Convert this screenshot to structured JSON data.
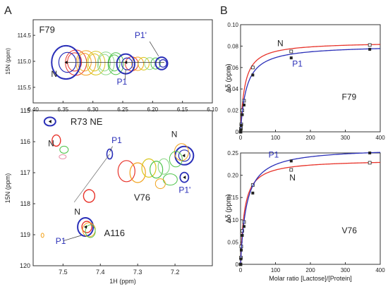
{
  "panel_labels": {
    "a": "A",
    "b": "B"
  },
  "colors": {
    "blue": "#2a2fb8",
    "red": "#e8342b",
    "orange": "#f2a21a",
    "yellow": "#d8c61c",
    "green": "#4fc44a",
    "lightgreen": "#8fd88a",
    "pink": "#e88fa6",
    "axis": "#333333",
    "gray": "#777777"
  },
  "chart_data": [
    {
      "type": "scatter",
      "subtype": "nmr-spectrum-zoom",
      "residue": "F79",
      "xlabel": "",
      "ylabel": "15N (ppm)",
      "xlim": [
        6.4,
        6.1
      ],
      "ylim": [
        114.2,
        115.8
      ],
      "xticks": [
        "6.40",
        "6.35",
        "6.30",
        "6.25",
        "6.20",
        "6.15",
        "6.10"
      ],
      "yticks": [
        "114.5",
        "115.0",
        "115.5"
      ],
      "annotations": [
        {
          "text": "F79",
          "x": 6.39,
          "y": 114.45,
          "color": "#222222"
        },
        {
          "text": "N",
          "x": 6.37,
          "y": 115.3,
          "color": "#222222"
        },
        {
          "text": "P1'",
          "x": 6.23,
          "y": 114.55,
          "color": "#2a2fb8"
        },
        {
          "text": "P1",
          "x": 6.26,
          "y": 115.45,
          "color": "#2a2fb8"
        }
      ],
      "peaks": {
        "N": [
          6.345,
          115.02
        ],
        "P1": [
          6.245,
          115.05
        ],
        "P1'": [
          6.185,
          115.04
        ]
      },
      "series": [
        {
          "name": "N",
          "color": "#2a2fb8",
          "center": [
            6.345,
            115.02
          ],
          "rx": 0.024,
          "ry": 0.32
        },
        {
          "name": "P1",
          "color": "#2a2fb8",
          "center": [
            6.245,
            115.05
          ],
          "rx": 0.015,
          "ry": 0.19
        },
        {
          "name": "P1'",
          "color": "#2a2fb8",
          "center": [
            6.185,
            115.04
          ],
          "rx": 0.01,
          "ry": 0.12
        }
      ]
    },
    {
      "type": "scatter",
      "subtype": "nmr-spectrum-zoom",
      "residues": [
        "R73 NE",
        "V76",
        "A116"
      ],
      "xlabel": "1H (ppm)",
      "ylabel": "15N (ppm)",
      "xlim": [
        7.58,
        7.1
      ],
      "ylim": [
        115,
        120
      ],
      "xticks": [
        "7.5",
        "7.4",
        "7.3",
        "7.2"
      ],
      "yticks": [
        "115",
        "116",
        "117",
        "118",
        "119",
        "120"
      ],
      "annotations": [
        {
          "text": "R73 NE",
          "x": 7.48,
          "y": 115.45,
          "color": "#222222"
        },
        {
          "text": "N",
          "x": 7.54,
          "y": 116.15,
          "color": "#222222"
        },
        {
          "text": "P1",
          "x": 7.37,
          "y": 116.05,
          "color": "#2a2fb8"
        },
        {
          "text": "N",
          "x": 7.21,
          "y": 115.85,
          "color": "#222222"
        },
        {
          "text": "V76",
          "x": 7.31,
          "y": 117.9,
          "color": "#222222"
        },
        {
          "text": "P1'",
          "x": 7.19,
          "y": 117.65,
          "color": "#2a2fb8"
        },
        {
          "text": "N",
          "x": 7.47,
          "y": 118.35,
          "color": "#222222"
        },
        {
          "text": "A116",
          "x": 7.39,
          "y": 119.05,
          "color": "#222222"
        },
        {
          "text": "P1",
          "x": 7.52,
          "y": 119.3,
          "color": "#2a2fb8"
        }
      ],
      "peaks": {
        "R73_N": [
          7.535,
          115.35
        ],
        "V76_N": [
          7.175,
          116.45
        ],
        "V76_P1": [
          7.375,
          116.4
        ],
        "V76_P1p": [
          7.175,
          117.15
        ],
        "A116_N": [
          7.44,
          118.75
        ]
      }
    },
    {
      "type": "line",
      "residue": "F79",
      "xlabel": "",
      "ylabel": "Δδ (ppm)",
      "xlim": [
        0,
        400
      ],
      "ylim": [
        0,
        0.1
      ],
      "xticks": [
        0,
        100,
        200,
        300,
        400
      ],
      "yticks": [
        0,
        0.02,
        0.04,
        0.06,
        0.08,
        0.1
      ],
      "ytick_labels": [
        "0",
        "0.02",
        "0.04",
        "0.06",
        "0.08",
        "0.10"
      ],
      "series": [
        {
          "name": "N",
          "color": "#e8342b",
          "marker": "open-square",
          "points": [
            [
              0,
              0
            ],
            [
              1,
              0.003
            ],
            [
              2,
              0.007
            ],
            [
              5,
              0.02
            ],
            [
              10,
              0.029
            ],
            [
              35,
              0.06
            ],
            [
              145,
              0.075
            ],
            [
              370,
              0.081
            ]
          ],
          "fit": {
            "dmax": 0.084,
            "k": 12
          }
        },
        {
          "name": "P1",
          "color": "#2a2fb8",
          "marker": "filled-square",
          "points": [
            [
              0,
              0
            ],
            [
              1,
              0.002
            ],
            [
              2,
              0.006
            ],
            [
              5,
              0.016
            ],
            [
              10,
              0.025
            ],
            [
              35,
              0.053
            ],
            [
              145,
              0.069
            ],
            [
              370,
              0.077
            ]
          ],
          "fit": {
            "dmax": 0.081,
            "k": 17
          }
        }
      ],
      "annotations": [
        {
          "text": "N",
          "x": 105,
          "y": 0.08,
          "color": "#222222"
        },
        {
          "text": "P1",
          "x": 148,
          "y": 0.061,
          "color": "#2a2fb8"
        },
        {
          "text": "F79",
          "x": 290,
          "y": 0.03,
          "color": "#222222"
        }
      ]
    },
    {
      "type": "line",
      "residue": "V76",
      "xlabel": "Molar ratio [Lactose]/[Protein]",
      "ylabel": "Δδ (ppm)",
      "xlim": [
        0,
        400
      ],
      "ylim": [
        0,
        0.25
      ],
      "xticks": [
        0,
        100,
        200,
        300,
        400
      ],
      "yticks": [
        0,
        0.05,
        0.1,
        0.15,
        0.2,
        0.25
      ],
      "ytick_labels": [
        "0",
        "0.05",
        "0.10",
        "0.15",
        "0.20",
        "0.25"
      ],
      "series": [
        {
          "name": "N",
          "color": "#e8342b",
          "marker": "open-square",
          "points": [
            [
              0,
              0
            ],
            [
              1,
              0.015
            ],
            [
              2,
              0.04
            ],
            [
              5,
              0.075
            ],
            [
              10,
              0.095
            ],
            [
              35,
              0.178
            ],
            [
              145,
              0.212
            ],
            [
              370,
              0.228
            ]
          ],
          "fit": {
            "dmax": 0.235,
            "k": 11
          }
        },
        {
          "name": "P1",
          "color": "#2a2fb8",
          "marker": "filled-square",
          "points": [
            [
              0,
              0
            ],
            [
              1,
              0.012
            ],
            [
              2,
              0.032
            ],
            [
              5,
              0.065
            ],
            [
              10,
              0.085
            ],
            [
              35,
              0.16
            ],
            [
              145,
              0.232
            ],
            [
              370,
              0.25
            ]
          ],
          "fit": {
            "dmax": 0.262,
            "k": 17
          }
        }
      ],
      "annotations": [
        {
          "text": "P1",
          "x": 80,
          "y": 0.24,
          "color": "#2a2fb8"
        },
        {
          "text": "N",
          "x": 140,
          "y": 0.188,
          "color": "#222222"
        },
        {
          "text": "V76",
          "x": 290,
          "y": 0.07,
          "color": "#222222"
        }
      ]
    }
  ]
}
